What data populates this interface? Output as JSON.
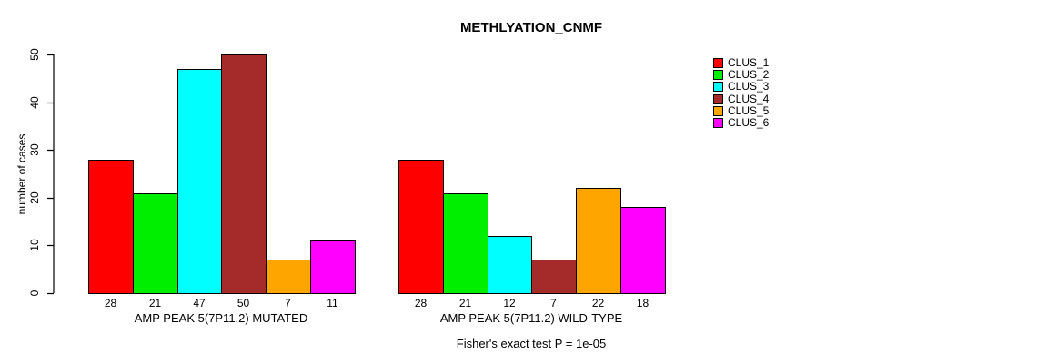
{
  "chart_data": {
    "type": "bar",
    "title": "METHLYATION_CNMF",
    "ylabel": "number of cases",
    "ylim": [
      0,
      50
    ],
    "yticks": [
      0,
      10,
      20,
      30,
      40,
      50
    ],
    "grid": false,
    "legend_position": "right",
    "clusters": [
      {
        "name": "CLUS_1",
        "color": "#FF0000"
      },
      {
        "name": "CLUS_2",
        "color": "#00EE00"
      },
      {
        "name": "CLUS_3",
        "color": "#00FFFF"
      },
      {
        "name": "CLUS_4",
        "color": "#A52A2A"
      },
      {
        "name": "CLUS_5",
        "color": "#FFA500"
      },
      {
        "name": "CLUS_6",
        "color": "#FF00FF"
      }
    ],
    "groups": [
      {
        "label": "AMP PEAK 5(7P11.2) MUTATED",
        "values": [
          28,
          21,
          47,
          50,
          7,
          11
        ]
      },
      {
        "label": "AMP PEAK 5(7P11.2) WILD-TYPE",
        "values": [
          28,
          21,
          12,
          7,
          22,
          18
        ]
      }
    ],
    "annotation": "Fisher's exact test P = 1e-05"
  }
}
